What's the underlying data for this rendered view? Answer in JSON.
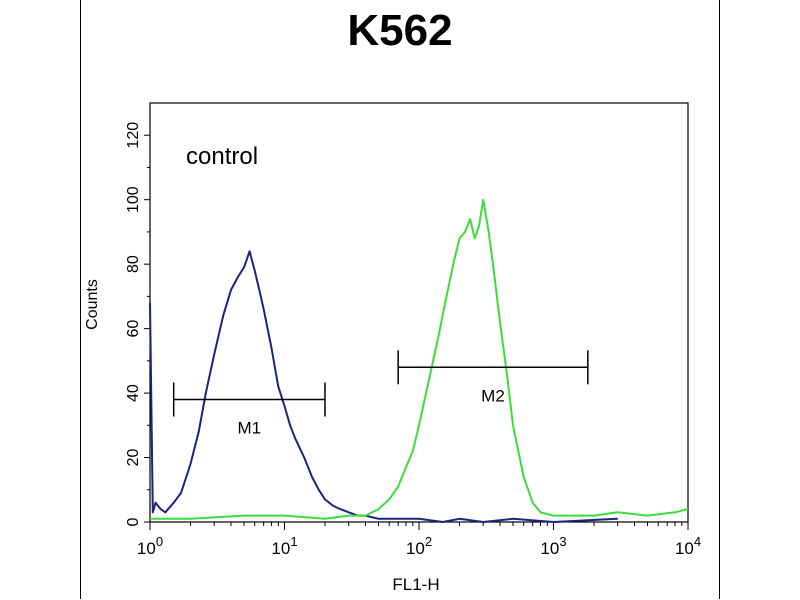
{
  "chart_data": {
    "type": "line",
    "title": "K562",
    "xlabel": "FL1-H",
    "ylabel": "Counts",
    "x_scale": "log",
    "xlim": [
      1,
      10000
    ],
    "ylim": [
      0,
      130
    ],
    "x_ticks": [
      {
        "value": 1,
        "base": "10",
        "exp": "0"
      },
      {
        "value": 10,
        "base": "10",
        "exp": "1"
      },
      {
        "value": 100,
        "base": "10",
        "exp": "2"
      },
      {
        "value": 1000,
        "base": "10",
        "exp": "3"
      },
      {
        "value": 10000,
        "base": "10",
        "exp": "4"
      }
    ],
    "y_ticks": [
      0,
      20,
      40,
      60,
      80,
      100,
      120
    ],
    "annotation": "control",
    "gates": [
      {
        "name": "M1",
        "x_start": 1.5,
        "x_end": 20,
        "y": 38
      },
      {
        "name": "M2",
        "x_start": 70,
        "x_end": 1800,
        "y": 48
      }
    ],
    "series": [
      {
        "color": "#1a237e",
        "x": [
          1,
          1.05,
          1.1,
          1.2,
          1.3,
          1.5,
          1.7,
          2,
          2.3,
          2.6,
          3,
          3.5,
          4,
          4.5,
          5,
          5.5,
          6,
          6.5,
          7,
          8,
          9,
          10,
          11,
          12,
          14,
          16,
          18,
          20,
          23,
          26,
          30,
          35,
          40,
          50,
          60,
          80,
          100,
          150,
          200,
          300,
          500,
          1000,
          3000
        ],
        "y": [
          68,
          3,
          6,
          4,
          3,
          6,
          9,
          18,
          28,
          40,
          52,
          64,
          72,
          76,
          79,
          84,
          78,
          72,
          66,
          54,
          42,
          36,
          30,
          26,
          20,
          14,
          10,
          7,
          5,
          4,
          3,
          2,
          2,
          1,
          1,
          1,
          1,
          0,
          1,
          0,
          1,
          0,
          1
        ]
      },
      {
        "color": "#3ddc3d",
        "x": [
          1,
          2,
          5,
          10,
          20,
          30,
          40,
          50,
          60,
          70,
          80,
          90,
          100,
          120,
          140,
          160,
          180,
          200,
          220,
          240,
          260,
          280,
          300,
          330,
          360,
          400,
          450,
          500,
          600,
          700,
          800,
          1000,
          1500,
          2000,
          3000,
          5000,
          8000,
          10000
        ],
        "y": [
          1,
          1,
          2,
          2,
          1,
          2,
          2,
          4,
          7,
          11,
          17,
          22,
          30,
          45,
          58,
          70,
          80,
          88,
          90,
          94,
          88,
          92,
          100,
          90,
          78,
          62,
          46,
          30,
          14,
          6,
          3,
          2,
          2,
          2,
          3,
          2,
          3,
          4
        ]
      }
    ]
  }
}
